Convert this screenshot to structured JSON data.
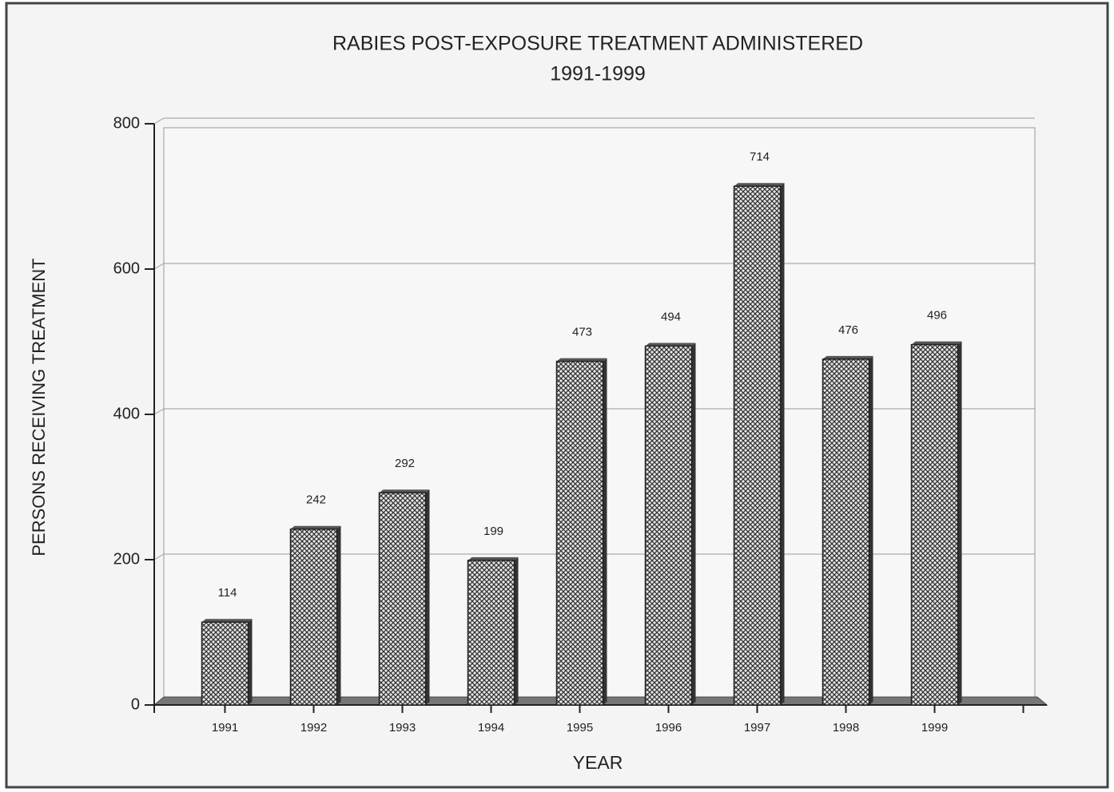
{
  "chart_data": {
    "type": "bar",
    "title": "RABIES POST-EXPOSURE TREATMENT ADMINISTERED",
    "subtitle": "1991-1999",
    "x_label": "YEAR",
    "y_label": "PERSONS RECEIVING TREATMENT",
    "categories": [
      "1991",
      "1992",
      "1993",
      "1994",
      "1995",
      "1996",
      "1997",
      "1998",
      "1999"
    ],
    "values": [
      114,
      242,
      292,
      199,
      473,
      494,
      714,
      476,
      496
    ],
    "color": "#888888",
    "ylim": [
      0,
      800
    ],
    "yticks": [
      0,
      200,
      400,
      600,
      800
    ],
    "grid": true
  }
}
